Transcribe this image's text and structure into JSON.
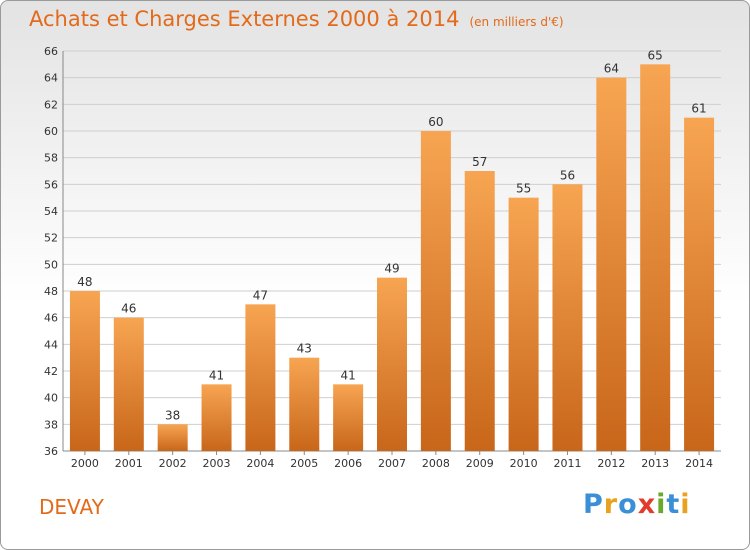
{
  "header": {
    "title": "Achats et Charges Externes 2000 à 2014",
    "unit": "(en milliers d'€)"
  },
  "footer": {
    "place": "DEVAY",
    "logo_letters": [
      {
        "ch": "P",
        "color": "#3a8fd6"
      },
      {
        "ch": "r",
        "color": "#e8a21e"
      },
      {
        "ch": "o",
        "color": "#3a8fd6"
      },
      {
        "ch": "x",
        "color": "#e23b2b"
      },
      {
        "ch": "i",
        "color": "#6aaa2a"
      },
      {
        "ch": "t",
        "color": "#3a8fd6"
      },
      {
        "ch": "i",
        "color": "#e8a21e"
      }
    ]
  },
  "colors": {
    "accent": "#e36a1a",
    "bar_top": "#f7a552",
    "bar_bottom": "#c8661a",
    "grid": "#cfcfcf"
  },
  "chart_data": {
    "type": "bar",
    "title": "Achats et Charges Externes 2000 à 2014",
    "subtitle": "(en milliers d'€)",
    "xlabel": "",
    "ylabel": "",
    "categories": [
      "2000",
      "2001",
      "2002",
      "2003",
      "2004",
      "2005",
      "2006",
      "2007",
      "2008",
      "2009",
      "2010",
      "2011",
      "2012",
      "2013",
      "2014"
    ],
    "values": [
      48,
      46,
      38,
      41,
      47,
      43,
      41,
      49,
      60,
      57,
      55,
      56,
      64,
      65,
      61
    ],
    "ylim": [
      36,
      66
    ],
    "yticks": [
      36,
      38,
      40,
      42,
      44,
      46,
      48,
      50,
      52,
      54,
      56,
      58,
      60,
      62,
      64,
      66
    ],
    "grid": true,
    "legend": "none"
  }
}
